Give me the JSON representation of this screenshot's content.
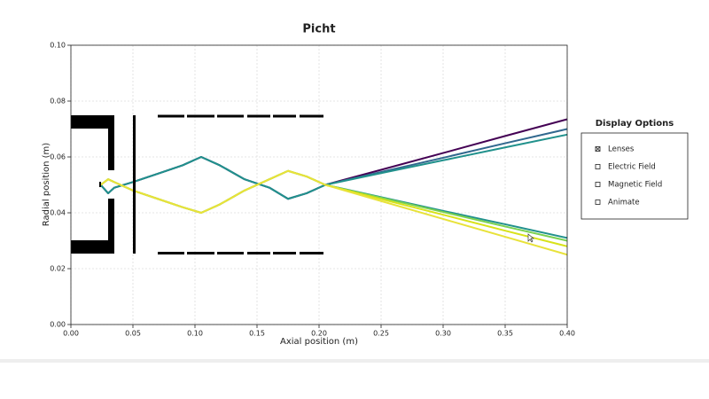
{
  "chart_data": {
    "type": "line",
    "title": "Picht",
    "x_label": "Axial position (m)",
    "y_label": "Radial position (m)",
    "x": [
      0.024,
      0.03,
      0.035,
      0.05,
      0.07,
      0.09,
      0.105,
      0.12,
      0.14,
      0.16,
      0.175,
      0.19,
      0.205,
      0.25,
      0.3,
      0.35,
      0.4
    ],
    "series": [
      {
        "color": "#440154",
        "values": [
          0.05,
          0.047,
          0.049,
          0.051,
          0.054,
          0.057,
          0.06,
          0.057,
          0.052,
          0.049,
          0.045,
          0.047,
          0.05,
          0.0554,
          0.0614,
          0.0675,
          0.0735
        ]
      },
      {
        "color": "#31688e",
        "values": [
          0.05,
          0.047,
          0.049,
          0.051,
          0.054,
          0.057,
          0.06,
          0.057,
          0.052,
          0.049,
          0.045,
          0.047,
          0.05,
          0.0546,
          0.0597,
          0.0649,
          0.07
        ]
      },
      {
        "color": "#21918c",
        "values": [
          0.05,
          0.047,
          0.049,
          0.051,
          0.054,
          0.057,
          0.06,
          0.057,
          0.052,
          0.049,
          0.045,
          0.047,
          0.05,
          0.0542,
          0.0588,
          0.0634,
          0.068
        ]
      },
      {
        "color": "#21918c",
        "values": [
          0.05,
          0.052,
          0.051,
          0.048,
          0.045,
          0.042,
          0.04,
          0.043,
          0.048,
          0.052,
          0.055,
          0.053,
          0.05,
          0.0456,
          0.0407,
          0.0359,
          0.031
        ]
      },
      {
        "color": "#7ad151",
        "values": [
          0.05,
          0.052,
          0.051,
          0.048,
          0.045,
          0.042,
          0.04,
          0.043,
          0.048,
          0.052,
          0.055,
          0.053,
          0.05,
          0.0454,
          0.0403,
          0.0351,
          0.03
        ]
      },
      {
        "color": "#d8e219",
        "values": [
          0.05,
          0.052,
          0.051,
          0.048,
          0.045,
          0.042,
          0.04,
          0.043,
          0.048,
          0.052,
          0.055,
          0.053,
          0.05,
          0.0449,
          0.0393,
          0.0336,
          0.028
        ]
      },
      {
        "color": "#e8e23a",
        "values": [
          0.05,
          0.052,
          0.051,
          0.048,
          0.045,
          0.042,
          0.04,
          0.043,
          0.048,
          0.052,
          0.055,
          0.053,
          0.05,
          0.0442,
          0.0378,
          0.0314,
          0.025
        ]
      }
    ],
    "xlim": [
      0,
      0.4
    ],
    "xticks": [
      {
        "value": 0,
        "label": "0.00"
      },
      0.05,
      {
        "value": 0.1,
        "label": "0.10"
      },
      0.15,
      {
        "value": 0.2,
        "label": "0.20"
      },
      0.25,
      {
        "value": 0.3,
        "label": "0.30"
      },
      0.35,
      {
        "value": 0.4,
        "label": "0.40"
      }
    ],
    "ylim": [
      0,
      0.1
    ],
    "yticks": [
      {
        "value": 0,
        "label": "0.00"
      },
      0.02,
      0.04,
      0.06,
      0.08,
      {
        "value": 0.1,
        "label": "0.10"
      }
    ],
    "grid": true
  },
  "display_options": {
    "title": "Display Options",
    "items": [
      {
        "label": "Lenses",
        "checked": true
      },
      {
        "label": "Electric Field",
        "checked": false
      },
      {
        "label": "Magnetic Field",
        "checked": false
      },
      {
        "label": "Animate",
        "checked": false
      }
    ]
  }
}
